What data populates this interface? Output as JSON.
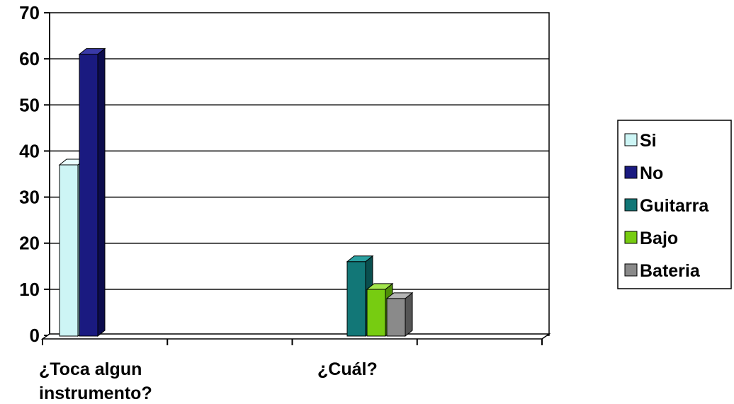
{
  "chart_data": {
    "type": "bar",
    "title": "",
    "xlabel": "",
    "ylabel": "",
    "ylim": [
      0,
      70
    ],
    "y_ticks": [
      "0",
      "10",
      "20",
      "30",
      "40",
      "50",
      "60",
      "70"
    ],
    "grid": true,
    "legend_position": "right",
    "categories": [
      "¿Toca algun instrumento?",
      "¿Cuál?"
    ],
    "category_lines": [
      [
        "¿Toca algun",
        "instrumento?"
      ],
      [
        "¿Cuál?"
      ]
    ],
    "series": [
      {
        "name": "Si",
        "values": [
          37,
          null
        ],
        "color": "#cdf5f5",
        "side": "#9fd8d8",
        "top": "#e8ffff"
      },
      {
        "name": "No",
        "values": [
          61,
          null
        ],
        "color": "#1a1a80",
        "side": "#0c0c4d",
        "top": "#3a3aa8"
      },
      {
        "name": "Guitarra",
        "values": [
          null,
          16
        ],
        "color": "#127777",
        "side": "#0a4f4f",
        "top": "#2aa0a0"
      },
      {
        "name": "Bajo",
        "values": [
          null,
          10
        ],
        "color": "#77cc11",
        "side": "#4f8f08",
        "top": "#a3e64d"
      },
      {
        "name": "Bateria",
        "values": [
          null,
          8
        ],
        "color": "#8a8a8a",
        "side": "#555555",
        "top": "#b5b5b5"
      }
    ]
  }
}
